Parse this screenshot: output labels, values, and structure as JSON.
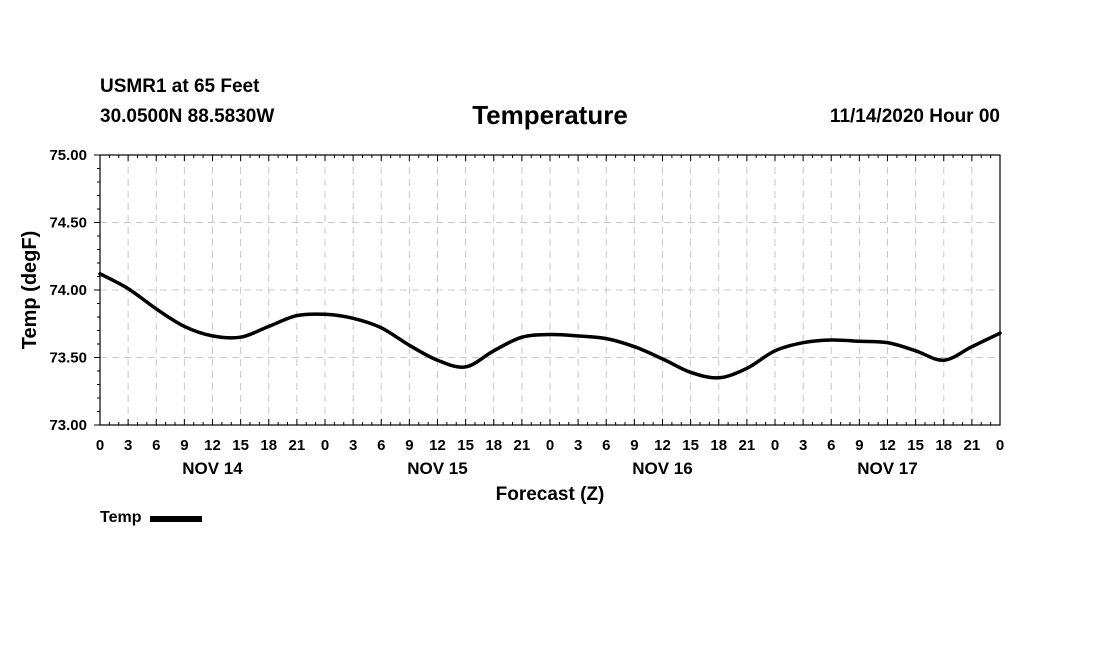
{
  "header": {
    "station": "USMR1 at 65 Feet",
    "coords": "30.0500N 88.5830W",
    "title": "Temperature",
    "run": "11/14/2020 Hour 00"
  },
  "legend": {
    "label": "Temp"
  },
  "colors": {
    "line": "#000000",
    "grid": "#c8c8c8",
    "axis": "#000000"
  },
  "chart_data": {
    "type": "line",
    "title": "Temperature",
    "xlabel": "Forecast (Z)",
    "ylabel": "Temp (degF)",
    "ylim": [
      73.0,
      75.0
    ],
    "yticks": [
      73.0,
      73.5,
      74.0,
      74.5,
      75.0
    ],
    "ytick_labels": [
      "73.00",
      "73.50",
      "74.00",
      "74.50",
      "75.00"
    ],
    "xlim": [
      0,
      96
    ],
    "x_unit": "forecast hour",
    "x_tick_step": 3,
    "x_tick_labels": [
      "0",
      "3",
      "6",
      "9",
      "12",
      "15",
      "18",
      "21",
      "0",
      "3",
      "6",
      "9",
      "12",
      "15",
      "18",
      "21",
      "0",
      "3",
      "6",
      "9",
      "12",
      "15",
      "18",
      "21",
      "0",
      "3",
      "6",
      "9",
      "12",
      "15",
      "18",
      "21",
      "0"
    ],
    "day_labels": [
      {
        "hour": 12,
        "label": "NOV 14"
      },
      {
        "hour": 36,
        "label": "NOV 15"
      },
      {
        "hour": 60,
        "label": "NOV 16"
      },
      {
        "hour": 84,
        "label": "NOV 17"
      }
    ],
    "grid": true,
    "series": [
      {
        "name": "Temp",
        "x": [
          0,
          3,
          6,
          9,
          12,
          15,
          18,
          21,
          24,
          27,
          30,
          33,
          36,
          39,
          42,
          45,
          48,
          51,
          54,
          57,
          60,
          63,
          66,
          69,
          72,
          75,
          78,
          81,
          84,
          87,
          90,
          93,
          96
        ],
        "values": [
          74.12,
          74.01,
          73.86,
          73.73,
          73.66,
          73.65,
          73.73,
          73.81,
          73.82,
          73.79,
          73.72,
          73.59,
          73.48,
          73.43,
          73.55,
          73.65,
          73.67,
          73.66,
          73.64,
          73.58,
          73.49,
          73.39,
          73.35,
          73.42,
          73.55,
          73.61,
          73.63,
          73.62,
          73.61,
          73.55,
          73.48,
          73.58,
          73.68
        ]
      }
    ]
  }
}
